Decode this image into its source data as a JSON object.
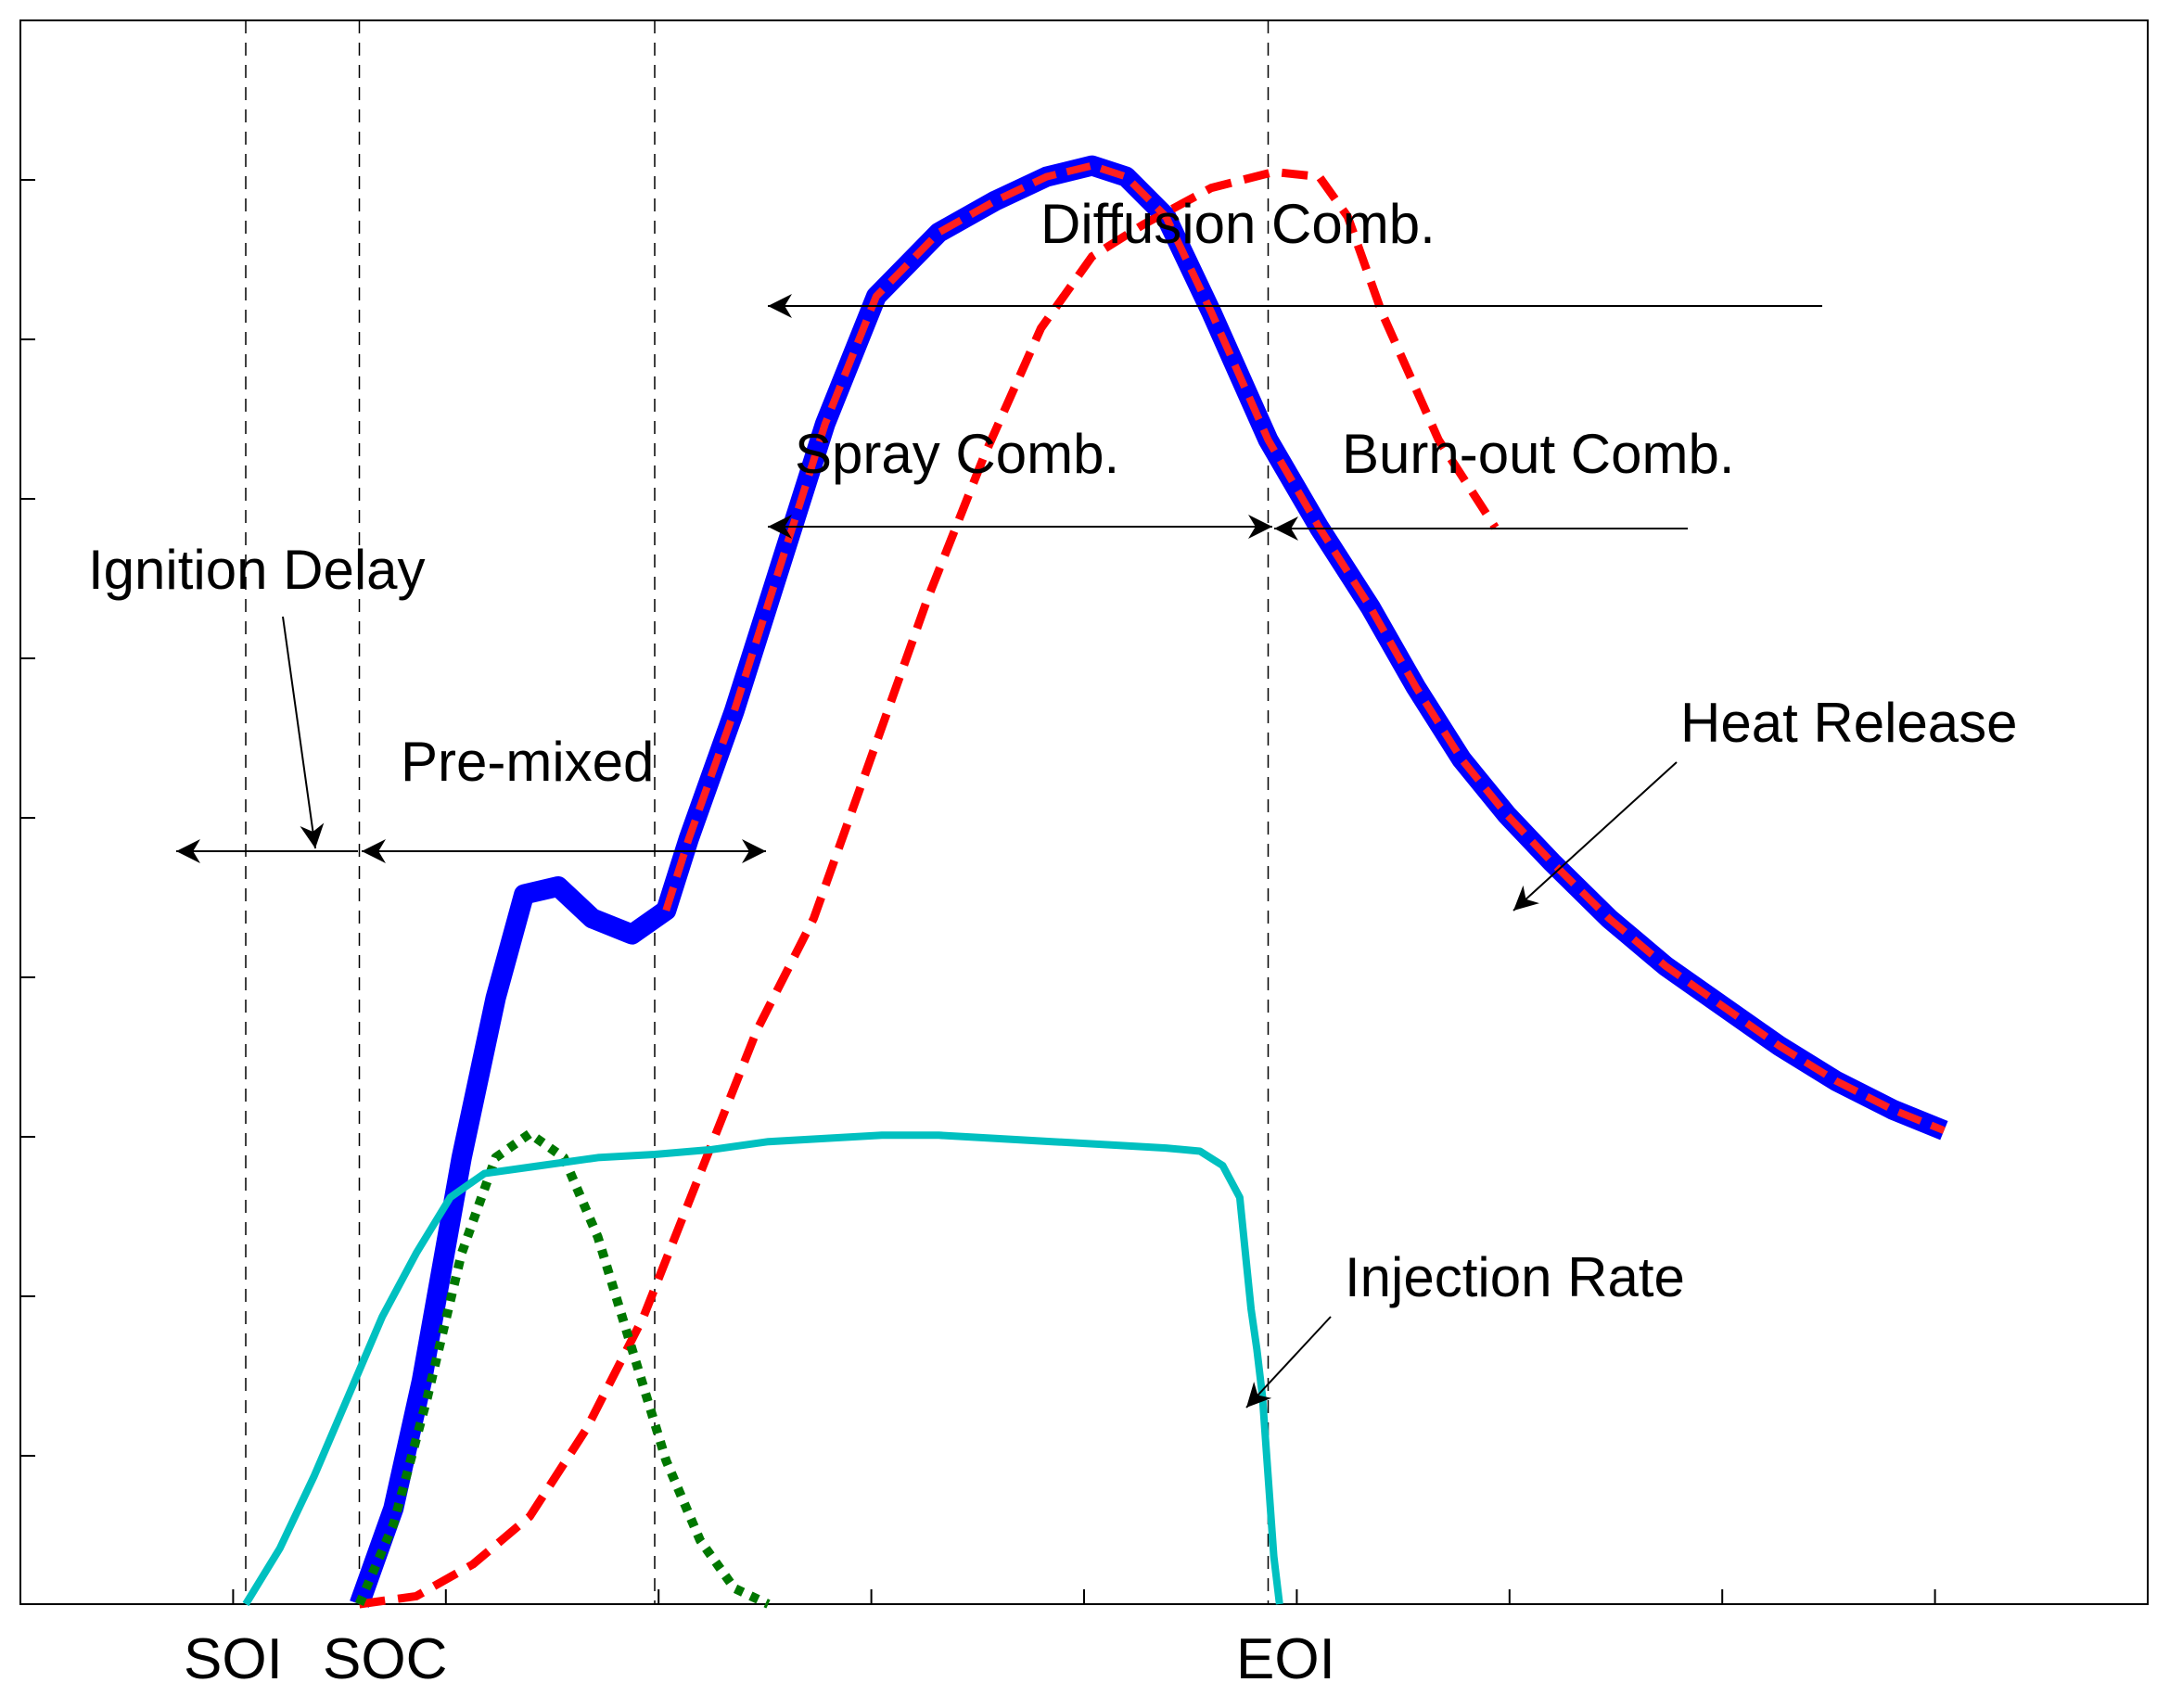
{
  "chart_data": {
    "type": "line",
    "title": "",
    "xlabel": "",
    "ylabel": "",
    "grid": false,
    "legend": "none",
    "x_markers": [
      {
        "label": "SOI",
        "x": 0
      },
      {
        "label": "SOC",
        "x": 1
      },
      {
        "label": "EOI",
        "x": 9
      }
    ],
    "phase_annotations": {
      "ignition_delay": "Ignition Delay",
      "premixed": "Pre-mixed",
      "diffusion": "Diffusion Comb.",
      "spray": "Spray Comb.",
      "burnout": "Burn-out Comb."
    },
    "series": [
      {
        "name": "Heat Release",
        "color": "#0000ff",
        "style": "solid-thick",
        "points": [
          [
            1.0,
            0.0
          ],
          [
            1.3,
            0.6
          ],
          [
            1.55,
            1.4
          ],
          [
            1.9,
            2.8
          ],
          [
            2.2,
            3.8
          ],
          [
            2.45,
            4.45
          ],
          [
            2.75,
            4.5
          ],
          [
            3.05,
            4.3
          ],
          [
            3.4,
            4.2
          ],
          [
            3.7,
            4.35
          ],
          [
            3.9,
            4.8
          ],
          [
            4.3,
            5.6
          ],
          [
            4.7,
            6.5
          ],
          [
            5.1,
            7.4
          ],
          [
            5.55,
            8.2
          ],
          [
            6.1,
            8.6
          ],
          [
            6.6,
            8.8
          ],
          [
            7.05,
            8.95
          ],
          [
            7.45,
            9.02
          ],
          [
            7.75,
            8.95
          ],
          [
            8.1,
            8.7
          ],
          [
            8.5,
            8.1
          ],
          [
            9.0,
            7.3
          ],
          [
            9.45,
            6.75
          ],
          [
            9.9,
            6.25
          ],
          [
            10.3,
            5.75
          ],
          [
            10.7,
            5.3
          ],
          [
            11.1,
            4.95
          ],
          [
            11.5,
            4.65
          ],
          [
            12.0,
            4.3
          ],
          [
            12.5,
            4.0
          ],
          [
            13.0,
            3.75
          ],
          [
            13.5,
            3.5
          ],
          [
            14.0,
            3.28
          ],
          [
            14.5,
            3.1
          ],
          [
            14.95,
            2.97
          ]
        ]
      },
      {
        "name": "",
        "color": "#ff0000",
        "style": "dashed",
        "points": [
          [
            1.0,
            0.0
          ],
          [
            1.5,
            0.05
          ],
          [
            2.0,
            0.25
          ],
          [
            2.5,
            0.55
          ],
          [
            3.0,
            1.1
          ],
          [
            3.5,
            1.8
          ],
          [
            4.0,
            2.7
          ],
          [
            4.5,
            3.6
          ],
          [
            5.0,
            4.3
          ],
          [
            5.5,
            5.3
          ],
          [
            6.0,
            6.3
          ],
          [
            6.5,
            7.2
          ],
          [
            7.0,
            8.0
          ],
          [
            7.45,
            8.45
          ],
          [
            7.9,
            8.65
          ],
          [
            8.5,
            8.88
          ],
          [
            9.05,
            8.98
          ],
          [
            9.45,
            8.95
          ],
          [
            9.7,
            8.7
          ],
          [
            10.0,
            8.1
          ],
          [
            10.5,
            7.3
          ],
          [
            11.0,
            6.75
          ]
        ]
      },
      {
        "name": "",
        "color": "#007700",
        "style": "dotted",
        "points": [
          [
            1.0,
            0.0
          ],
          [
            1.3,
            0.5
          ],
          [
            1.6,
            1.3
          ],
          [
            1.9,
            2.2
          ],
          [
            2.2,
            2.8
          ],
          [
            2.5,
            2.95
          ],
          [
            2.8,
            2.8
          ],
          [
            3.1,
            2.3
          ],
          [
            3.4,
            1.6
          ],
          [
            3.7,
            0.9
          ],
          [
            4.0,
            0.4
          ],
          [
            4.3,
            0.1
          ],
          [
            4.6,
            0.0
          ]
        ]
      },
      {
        "name": "Injection Rate",
        "color": "#00c0c0",
        "style": "solid",
        "points": [
          [
            0.0,
            0.0
          ],
          [
            0.3,
            0.35
          ],
          [
            0.6,
            0.8
          ],
          [
            0.9,
            1.3
          ],
          [
            1.2,
            1.8
          ],
          [
            1.5,
            2.2
          ],
          [
            1.8,
            2.55
          ],
          [
            2.1,
            2.7
          ],
          [
            2.6,
            2.75
          ],
          [
            3.1,
            2.8
          ],
          [
            3.6,
            2.82
          ],
          [
            4.1,
            2.85
          ],
          [
            4.6,
            2.9
          ],
          [
            5.1,
            2.92
          ],
          [
            5.6,
            2.94
          ],
          [
            6.1,
            2.94
          ],
          [
            6.6,
            2.92
          ],
          [
            7.1,
            2.9
          ],
          [
            7.6,
            2.88
          ],
          [
            8.1,
            2.86
          ],
          [
            8.4,
            2.84
          ],
          [
            8.6,
            2.75
          ],
          [
            8.75,
            2.55
          ],
          [
            8.8,
            2.2
          ],
          [
            8.85,
            1.85
          ],
          [
            8.9,
            1.6
          ],
          [
            8.95,
            1.3
          ],
          [
            9.0,
            0.8
          ],
          [
            9.05,
            0.3
          ],
          [
            9.1,
            0.0
          ]
        ]
      }
    ]
  },
  "labels": {
    "soi": "SOI",
    "soc": "SOC",
    "eoi": "EOI",
    "ignition_delay": "Ignition Delay",
    "premixed": "Pre-mixed",
    "diffusion": "Diffusion Comb.",
    "spray": "Spray Comb.",
    "burnout": "Burn-out Comb.",
    "heat_release": "Heat Release",
    "injection_rate": "Injection Rate"
  }
}
